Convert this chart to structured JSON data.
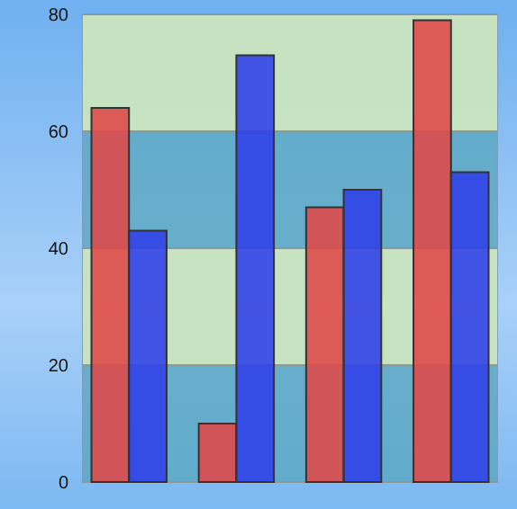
{
  "chart_data": {
    "type": "bar",
    "categories": [
      null,
      null,
      null,
      null
    ],
    "series": [
      {
        "color": "#e04848",
        "values": [
          64,
          10,
          47,
          79
        ]
      },
      {
        "color": "#2f3fe8",
        "values": [
          43,
          73,
          50,
          53
        ]
      }
    ],
    "ylim": [
      0,
      80
    ],
    "yticks": [
      0,
      20,
      40,
      60,
      80
    ],
    "grid": "y",
    "bands": [
      {
        "axis": "y",
        "from": 20,
        "to": 40,
        "color": "#d8ecc0"
      },
      {
        "axis": "y",
        "from": 60,
        "to": 80,
        "color": "#d8ecc0"
      }
    ]
  }
}
